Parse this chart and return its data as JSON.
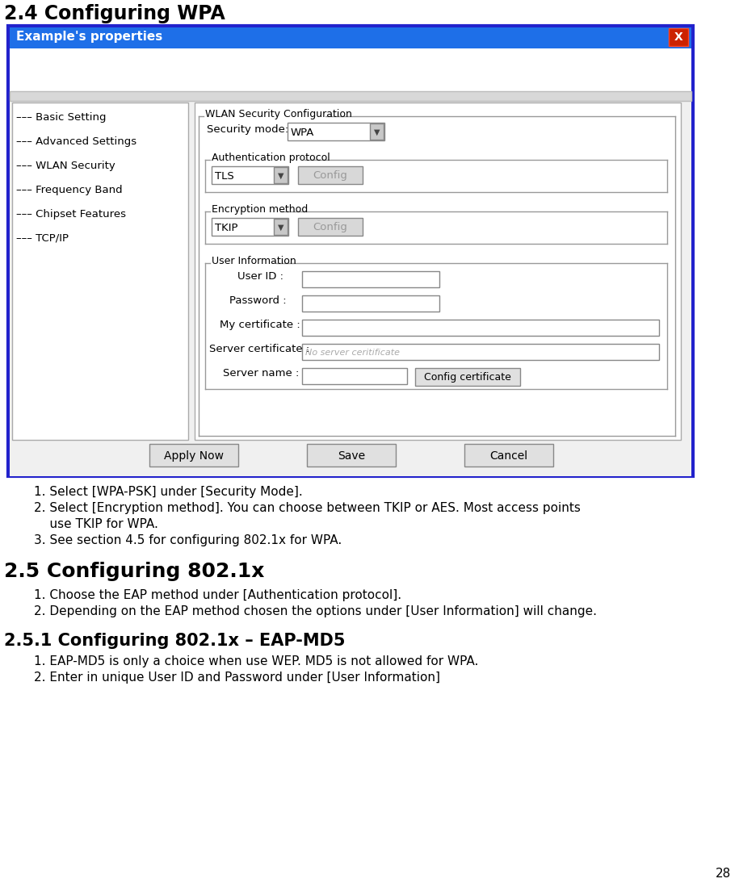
{
  "title_24": "2.4 Configuring WPA",
  "title_25": "2.5 Configuring 802.1x",
  "title_251": "2.5.1 Configuring 802.1x – EAP-MD5",
  "window_title": "Example's properties",
  "section_24_items": [
    "1. Select [WPA-PSK] under [Security Mode].",
    "2. Select [Encryption method]. You can choose between TKIP or AES. Most access points",
    "    use TKIP for WPA.",
    "3. See section 4.5 for configuring 802.1x for WPA."
  ],
  "section_25_items": [
    "1. Choose the EAP method under [Authentication protocol].",
    "2. Depending on the EAP method chosen the options under [User Information] will change."
  ],
  "section_251_items": [
    "1. EAP-MD5 is only a choice when use WEP. MD5 is not allowed for WPA.",
    "2. Enter in unique User ID and Password under [User Information]"
  ],
  "page_number": "28",
  "nav_items": [
    "Basic Setting",
    "Advanced Settings",
    "WLAN Security",
    "Frequency Band",
    "Chipset Features",
    "TCP/IP"
  ],
  "wlan_label": "WLAN Security Configuration",
  "security_mode_label": "Security mode:",
  "security_mode_value": "WPA",
  "auth_protocol_label": "Authentication protocol",
  "auth_protocol_value": "TLS",
  "encryption_label": "Encryption method",
  "encryption_value": "TKIP",
  "user_info_label": "User Information",
  "user_id_label": "User ID :",
  "password_label": "Password :",
  "my_cert_label": "My certificate :",
  "server_cert_label": "Server certificate :",
  "server_cert_placeholder": "No server ceritificate",
  "server_name_label": "Server name :",
  "btn_apply": "Apply Now",
  "btn_save": "Save",
  "btn_cancel": "Cancel",
  "btn_config": "Config",
  "btn_config_cert": "Config certificate",
  "titlebar_color": "#1e6fe8",
  "close_btn_color": "#cc2200",
  "body_bg": "#f0f0f0",
  "inner_bg": "#ffffff",
  "border_color": "#2222cc",
  "group_border": "#999999",
  "btn_face": "#e0e0e0",
  "dropdown_face": "#ffffff",
  "arrow_face": "#c8c8c8",
  "nav_bg": "#ffffff"
}
